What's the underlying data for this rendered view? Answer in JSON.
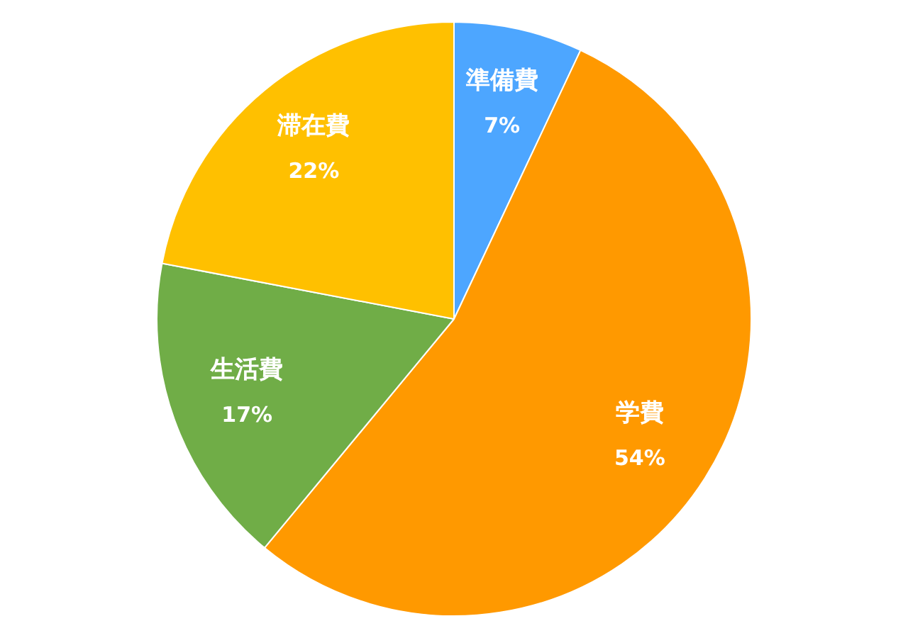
{
  "chart_data": {
    "type": "pie",
    "categories": [
      "準備費",
      "学費",
      "生活費",
      "滞在費"
    ],
    "values": [
      7,
      54,
      17,
      22
    ],
    "value_labels": [
      "7%",
      "54%",
      "17%",
      "22%"
    ],
    "colors": [
      "#4da6ff",
      "#ff9900",
      "#70ad47",
      "#ffc000"
    ],
    "legend": false
  }
}
